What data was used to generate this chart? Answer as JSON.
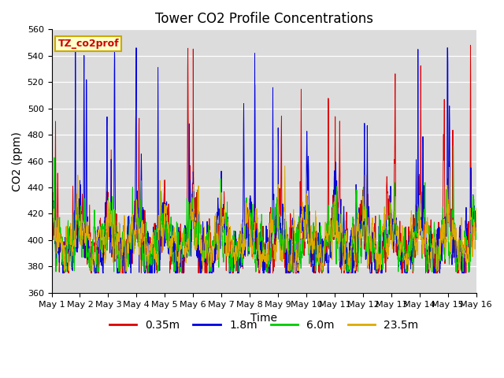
{
  "title": "Tower CO2 Profile Concentrations",
  "xlabel": "Time",
  "ylabel": "CO2 (ppm)",
  "ylim": [
    360,
    560
  ],
  "xlim": [
    0,
    15
  ],
  "bg_color": "#dcdcdc",
  "fig_color": "#ffffff",
  "label_box_text": "TZ_co2prof",
  "label_box_facecolor": "#ffffcc",
  "label_box_edgecolor": "#ccaa00",
  "xtick_labels": [
    "May 1",
    "May 2",
    "May 3",
    "May 4",
    "May 5",
    "May 6",
    "May 7",
    "May 8",
    "May 9",
    "May 10",
    "May 11",
    "May 12",
    "May 13",
    "May 14",
    "May 15",
    "May 16"
  ],
  "series_colors": [
    "#dd0000",
    "#0000dd",
    "#00cc00",
    "#ddaa00"
  ],
  "series_labels": [
    "0.35m",
    "1.8m",
    "6.0m",
    "23.5m"
  ],
  "title_fontsize": 12,
  "axis_label_fontsize": 10,
  "tick_fontsize": 8,
  "legend_fontsize": 10,
  "seed": 17,
  "n_points": 2160,
  "n_days": 15
}
